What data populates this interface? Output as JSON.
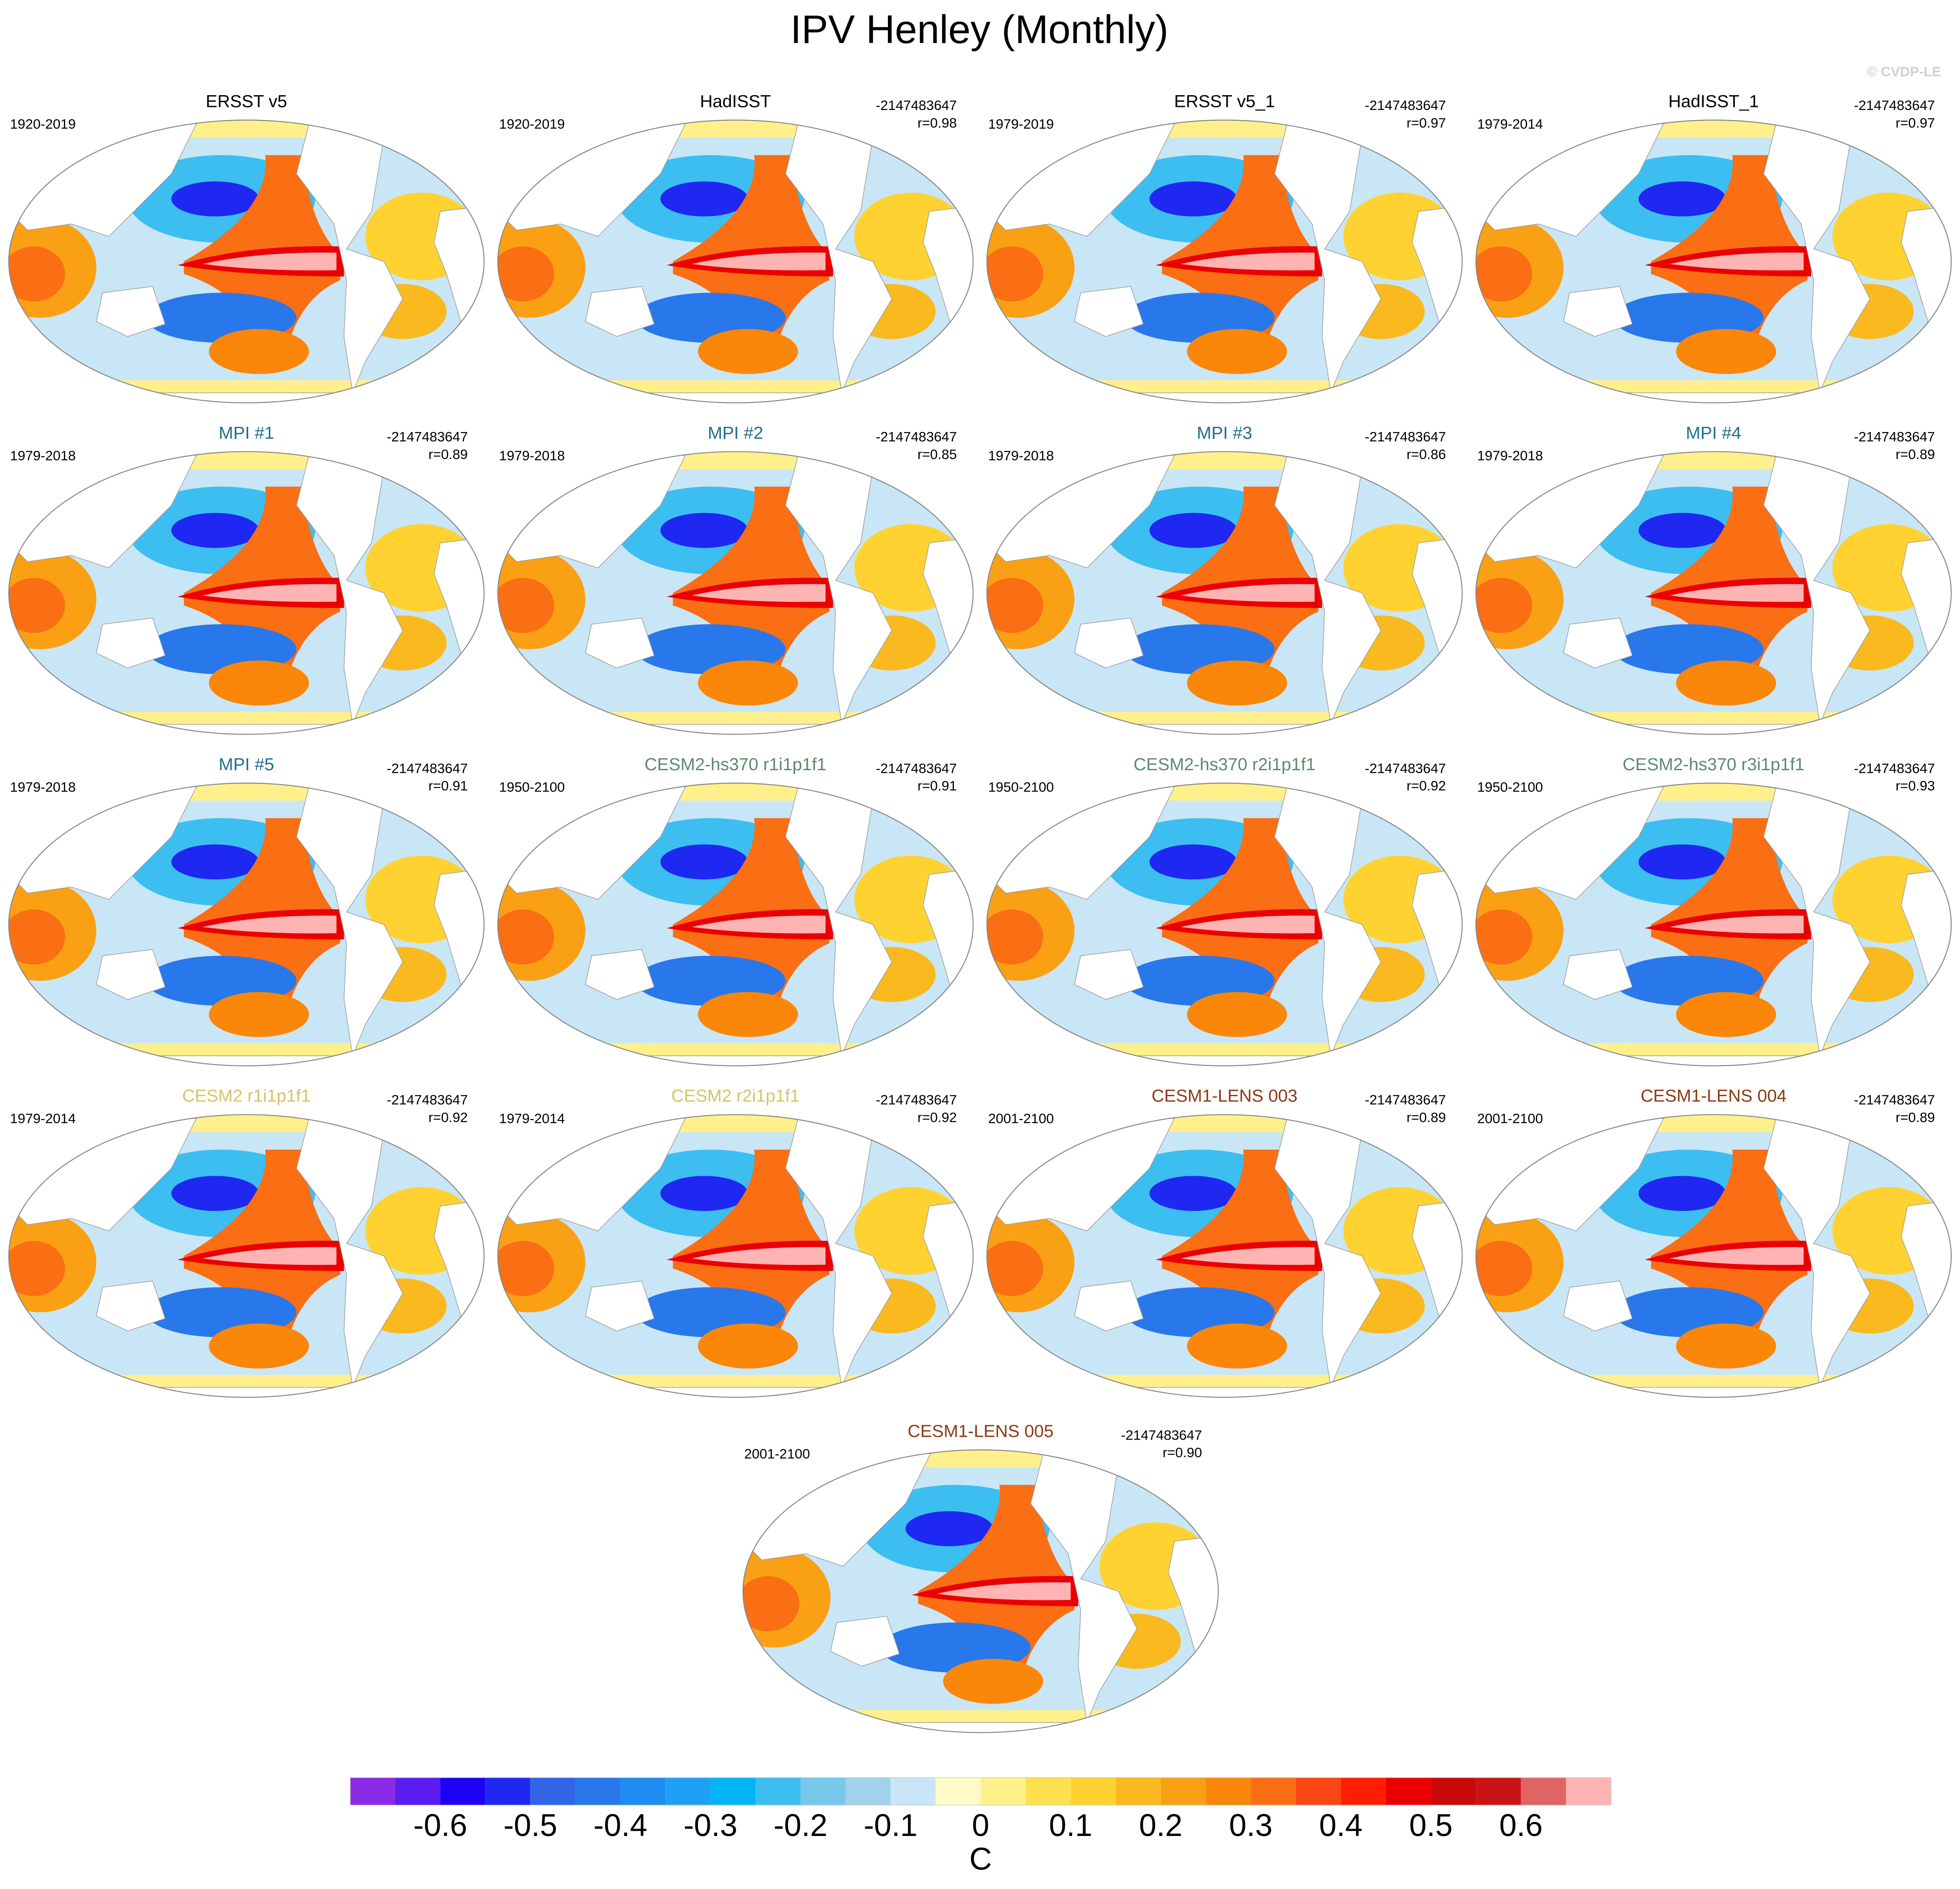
{
  "title": "IPV Henley (Monthly)",
  "watermark": "© CVDP-LE",
  "panels": [
    {
      "title": "ERSST v5",
      "color": "#000000",
      "period": "1920-2019"
    },
    {
      "title": "HadISST",
      "color": "#000000",
      "period": "1920-2019",
      "stat": "-2147483647",
      "r": "r=0.98"
    },
    {
      "title": "ERSST v5_1",
      "color": "#000000",
      "period": "1979-2019",
      "stat": "-2147483647",
      "r": "r=0.97"
    },
    {
      "title": "HadISST_1",
      "color": "#000000",
      "period": "1979-2014",
      "stat": "-2147483647",
      "r": "r=0.97"
    },
    {
      "title": "MPI #1",
      "color": "#1f6f8b",
      "period": "1979-2018",
      "stat": "-2147483647",
      "r": "r=0.89"
    },
    {
      "title": "MPI #2",
      "color": "#1f6f8b",
      "period": "1979-2018",
      "stat": "-2147483647",
      "r": "r=0.85"
    },
    {
      "title": "MPI #3",
      "color": "#1f6f8b",
      "period": "1979-2018",
      "stat": "-2147483647",
      "r": "r=0.86"
    },
    {
      "title": "MPI #4",
      "color": "#1f6f8b",
      "period": "1979-2018",
      "stat": "-2147483647",
      "r": "r=0.89"
    },
    {
      "title": "MPI #5",
      "color": "#1f6f8b",
      "period": "1979-2018",
      "stat": "-2147483647",
      "r": "r=0.91"
    },
    {
      "title": "CESM2-hs370 r1i1p1f1",
      "color": "#5b8a6e",
      "period": "1950-2100",
      "stat": "-2147483647",
      "r": "r=0.91"
    },
    {
      "title": "CESM2-hs370 r2i1p1f1",
      "color": "#5b8a6e",
      "period": "1950-2100",
      "stat": "-2147483647",
      "r": "r=0.92"
    },
    {
      "title": "CESM2-hs370 r3i1p1f1",
      "color": "#5b8a6e",
      "period": "1950-2100",
      "stat": "-2147483647",
      "r": "r=0.93"
    },
    {
      "title": "CESM2 r1i1p1f1",
      "color": "#d4c36a",
      "period": "1979-2014",
      "stat": "-2147483647",
      "r": "r=0.92"
    },
    {
      "title": "CESM2 r2i1p1f1",
      "color": "#d4c36a",
      "period": "1979-2014",
      "stat": "-2147483647",
      "r": "r=0.92"
    },
    {
      "title": "CESM1-LENS 003",
      "color": "#8b3a12",
      "period": "2001-2100",
      "stat": "-2147483647",
      "r": "r=0.89"
    },
    {
      "title": "CESM1-LENS 004",
      "color": "#8b3a12",
      "period": "2001-2100",
      "stat": "-2147483647",
      "r": "r=0.89"
    },
    {
      "title": "CESM1-LENS 005",
      "color": "#8b3a12",
      "period": "2001-2100",
      "stat": "-2147483647",
      "r": "r=0.90"
    }
  ],
  "colorbar": {
    "label": "C",
    "range": [
      -0.7,
      0.7
    ],
    "ticks": [
      -0.6,
      -0.5,
      -0.4,
      -0.3,
      -0.2,
      -0.1,
      0,
      0.1,
      0.2,
      0.3,
      0.4,
      0.5,
      0.6
    ],
    "colors": [
      "#8a2be8",
      "#5a1df0",
      "#1e00f5",
      "#1e28f0",
      "#3264e6",
      "#2878eb",
      "#1e8cf0",
      "#1ea0f5",
      "#00b4f5",
      "#3cbef0",
      "#78c8eb",
      "#a0d2eb",
      "#c8e6f5",
      "#fffac8",
      "#fff08c",
      "#ffe150",
      "#ffd232",
      "#fab91e",
      "#faa014",
      "#fa870a",
      "#fa6e14",
      "#fa4614",
      "#ff1e00",
      "#eb0000",
      "#c80a0a",
      "#c81414",
      "#e16464",
      "#ffb4b4"
    ]
  }
}
